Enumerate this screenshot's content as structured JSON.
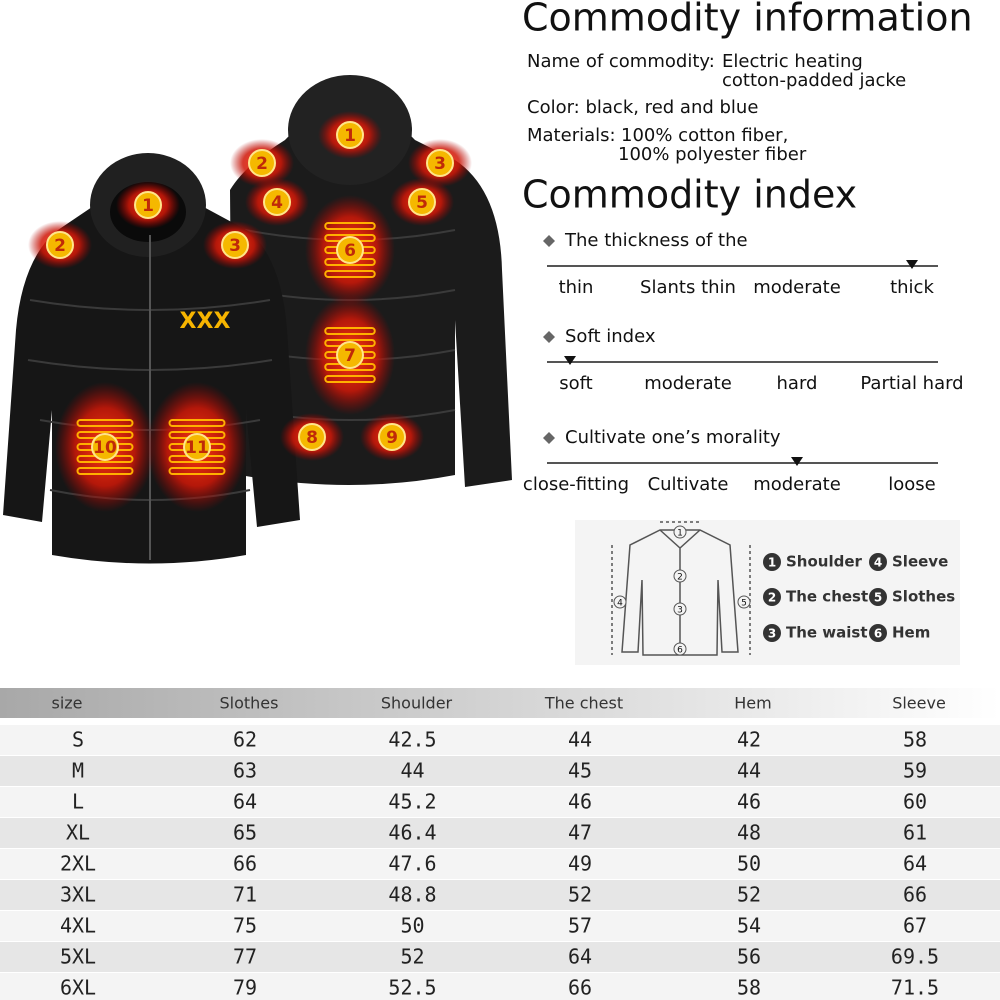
{
  "jacket_front_zones": [
    1,
    2,
    3,
    10,
    11
  ],
  "jacket_back_zones": [
    1,
    2,
    3,
    4,
    5,
    6,
    7,
    8,
    9
  ],
  "info": {
    "title": "Commodity information",
    "name_label": "Name of commodity:",
    "name_value": [
      "Electric heating",
      "cotton-padded jacke"
    ],
    "color": "Color: black, red and blue",
    "materials_label": "Materials:",
    "materials_value": [
      "100% cotton fiber,",
      "100% polyester fiber"
    ]
  },
  "index": {
    "title": "Commodity index",
    "scales": [
      {
        "name": "The thickness of the",
        "levels": [
          "thin",
          "Slants thin",
          "moderate",
          "thick"
        ],
        "selected": 3
      },
      {
        "name": "Soft index",
        "levels": [
          "soft",
          "moderate",
          "hard",
          "Partial hard"
        ],
        "selected": 0
      },
      {
        "name": "Cultivate one’s morality",
        "levels": [
          "close-fitting",
          "Cultivate",
          "moderate",
          "loose"
        ],
        "selected": 2
      }
    ]
  },
  "diagram": {
    "markers": [
      1,
      2,
      3,
      4,
      5,
      6
    ],
    "legend": [
      {
        "num": 1,
        "label": "Shoulder"
      },
      {
        "num": 2,
        "label": "The chest"
      },
      {
        "num": 3,
        "label": "The waist"
      },
      {
        "num": 4,
        "label": "Sleeve"
      },
      {
        "num": 5,
        "label": "Slothes"
      },
      {
        "num": 6,
        "label": "Hem"
      }
    ]
  },
  "table": {
    "header": [
      "size",
      "Slothes",
      "Shoulder",
      "The chest",
      "Hem",
      "Sleeve"
    ],
    "rows": [
      [
        "S",
        62,
        42.5,
        44,
        42,
        58
      ],
      [
        "M",
        63,
        44,
        45,
        44,
        59
      ],
      [
        "L",
        64,
        45.2,
        46,
        46,
        60
      ],
      [
        "XL",
        65,
        46.4,
        47,
        48,
        61
      ],
      [
        "2XL",
        66,
        47.6,
        49,
        50,
        64
      ],
      [
        "3XL",
        71,
        48.8,
        52,
        52,
        66
      ],
      [
        "4XL",
        75,
        50,
        57,
        54,
        67
      ],
      [
        "5XL",
        77,
        52,
        64,
        56,
        69.5
      ],
      [
        "6XL",
        79,
        52.5,
        66,
        58,
        71.5
      ]
    ]
  }
}
